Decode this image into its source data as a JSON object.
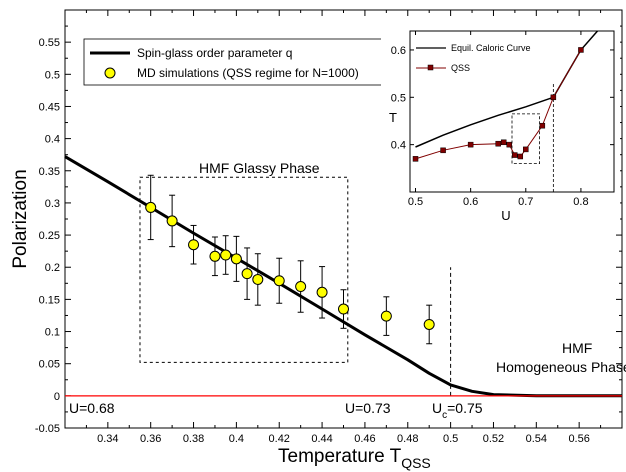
{
  "chart_data": [
    {
      "type": "line",
      "xlabel": "Temperature T",
      "xlabel_sub": "QSS",
      "ylabel": "Polarization",
      "xlim": [
        0.32,
        0.58
      ],
      "ylim": [
        -0.05,
        0.6
      ],
      "x_ticks": [
        0.34,
        0.36,
        0.38,
        0.4,
        0.42,
        0.44,
        0.46,
        0.48,
        0.5,
        0.52,
        0.54,
        0.56
      ],
      "y_ticks": [
        -0.05,
        0,
        0.05,
        0.1,
        0.15,
        0.2,
        0.25,
        0.3,
        0.35,
        0.4,
        0.45,
        0.5,
        0.55
      ],
      "x_tick_labels": [
        "0.34",
        "0.36",
        "0.38",
        "0.4",
        "0.42",
        "0.44",
        "0.46",
        "0.48",
        "0.5",
        "0.52",
        "0.54",
        "0.56"
      ],
      "y_tick_labels": [
        "-0.05",
        "0",
        "0.05",
        "0.1",
        "0.15",
        "0.2",
        "0.25",
        "0.3",
        "0.35",
        "0.4",
        "0.45",
        "0.5",
        "0.55"
      ],
      "grid": false,
      "legend_position": "top-left",
      "series": [
        {
          "name": "Spin-glass order parameter q",
          "style": "line",
          "color": "#000000",
          "x": [
            0.32,
            0.34,
            0.36,
            0.38,
            0.4,
            0.42,
            0.44,
            0.46,
            0.48,
            0.49,
            0.5,
            0.51,
            0.52,
            0.54,
            0.56,
            0.58
          ],
          "y": [
            0.372,
            0.333,
            0.293,
            0.253,
            0.214,
            0.175,
            0.135,
            0.095,
            0.056,
            0.035,
            0.017,
            0.007,
            0.002,
            0.0,
            0.0,
            0.0
          ]
        },
        {
          "name": "MD simulations (QSS regime for N=1000)",
          "style": "markers",
          "color": "#ffff00",
          "x": [
            0.36,
            0.37,
            0.38,
            0.39,
            0.395,
            0.4,
            0.405,
            0.41,
            0.42,
            0.43,
            0.44,
            0.45,
            0.47,
            0.49
          ],
          "y": [
            0.293,
            0.272,
            0.235,
            0.217,
            0.219,
            0.213,
            0.19,
            0.181,
            0.179,
            0.17,
            0.161,
            0.135,
            0.124,
            0.111
          ],
          "err": [
            0.05,
            0.04,
            0.03,
            0.03,
            0.03,
            0.035,
            0.04,
            0.04,
            0.035,
            0.04,
            0.04,
            0.03,
            0.03,
            0.03
          ]
        },
        {
          "name": "",
          "style": "red-baseline",
          "color": "#ff0000",
          "x": [
            0.32,
            0.58
          ],
          "y": [
            0,
            0
          ]
        }
      ],
      "annotations": {
        "glassy_phase": "HMF Glassy Phase",
        "hmf": "HMF",
        "homogeneous_phase": "Homogeneous Phase",
        "u068": "U=0.68",
        "u073": "U=0.73",
        "uc_main": "U",
        "uc_sub": "c",
        "uc_value": "=0.75"
      },
      "glassy_box": {
        "x": [
          0.355,
          0.452
        ],
        "y": [
          0.052,
          0.34
        ]
      },
      "critical_line": {
        "x": 0.5,
        "y": [
          0.0,
          0.2
        ]
      }
    },
    {
      "type": "line",
      "xlabel": "U",
      "ylabel": "T",
      "xlim": [
        0.49,
        0.86
      ],
      "ylim": [
        0.3,
        0.64
      ],
      "x_ticks": [
        0.5,
        0.6,
        0.7,
        0.8
      ],
      "y_ticks": [
        0.3,
        0.4,
        0.5,
        0.6
      ],
      "x_tick_labels": [
        "0.5",
        "0.6",
        "0.7",
        "0.8"
      ],
      "y_tick_labels": [
        "0.3",
        "0.4",
        "0.5",
        "0.6"
      ],
      "legend_position": "top-left",
      "series": [
        {
          "name": "Equil. Caloric Curve",
          "style": "line",
          "color": "#000000",
          "x": [
            0.5,
            0.55,
            0.6,
            0.65,
            0.7,
            0.75,
            0.8,
            0.83
          ],
          "y": [
            0.395,
            0.42,
            0.442,
            0.462,
            0.48,
            0.5,
            0.6,
            0.64
          ]
        },
        {
          "name": "QSS",
          "style": "line-markers",
          "color": "#800000",
          "x": [
            0.5,
            0.55,
            0.6,
            0.65,
            0.66,
            0.67,
            0.68,
            0.69,
            0.7,
            0.73,
            0.75,
            0.8
          ],
          "y": [
            0.37,
            0.388,
            0.4,
            0.402,
            0.405,
            0.4,
            0.378,
            0.375,
            0.39,
            0.44,
            0.5,
            0.6
          ]
        }
      ],
      "zoom_box": {
        "x": [
          0.675,
          0.725
        ],
        "y": [
          0.36,
          0.465
        ]
      },
      "critical_line": {
        "x": 0.75,
        "y": [
          0.3,
          0.53
        ]
      }
    }
  ]
}
